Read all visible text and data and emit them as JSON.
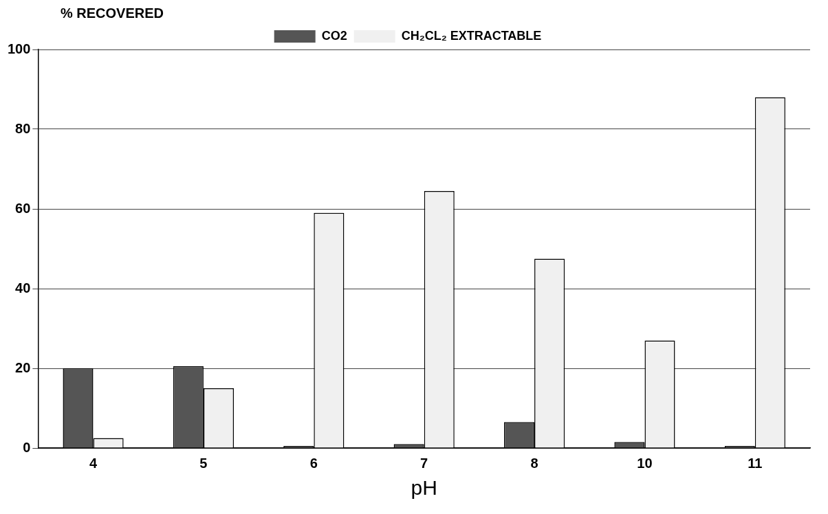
{
  "chart_data": {
    "type": "bar",
    "ylabel": "% RECOVERED",
    "xlabel": "pH",
    "categories": [
      "4",
      "5",
      "6",
      "7",
      "8",
      "10",
      "11"
    ],
    "series": [
      {
        "name": "CO2",
        "color": "#555555",
        "values": [
          20,
          20.5,
          0.5,
          1,
          6.5,
          1.5,
          0.5
        ]
      },
      {
        "name": "CH₂CL₂ EXTRACTABLE",
        "color": "#f0f0f0",
        "values": [
          2.5,
          15,
          59,
          64.5,
          47.5,
          27,
          88
        ]
      }
    ],
    "ylim": [
      0,
      100
    ],
    "yticks": [
      0,
      20,
      40,
      60,
      80,
      100
    ],
    "grid": "y",
    "legend": "top"
  }
}
